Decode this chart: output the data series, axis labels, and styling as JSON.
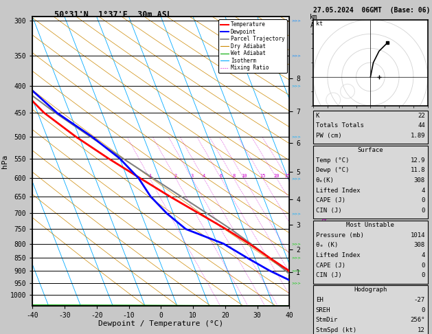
{
  "title_left": "50°31'N  1°37'E  30m ASL",
  "title_right": "27.05.2024  06GMT  (Base: 06)",
  "xlabel": "Dewpoint / Temperature (°C)",
  "ylabel_left": "hPa",
  "bg_color": "#c8c8c8",
  "plot_bg": "#ffffff",
  "pressure_ticks": [
    300,
    350,
    400,
    450,
    500,
    550,
    600,
    650,
    700,
    750,
    800,
    850,
    900,
    950,
    1000
  ],
  "isotherm_color": "#00aaff",
  "dry_adiabat_color": "#cc8800",
  "wet_adiabat_color": "#00aa00",
  "mixing_ratio_color": "#cc00cc",
  "mixing_ratio_values": [
    1,
    2,
    3,
    4,
    6,
    8,
    10,
    15,
    20,
    25
  ],
  "temperature_profile_temp": [
    12.9,
    11.5,
    9.0,
    4.5,
    0.0,
    -5.5,
    -12.0,
    -19.0,
    -26.0,
    -33.5,
    -41.0,
    -48.0,
    -53.0,
    -58.0,
    -58.0
  ],
  "temperature_profile_pres": [
    1000,
    950,
    900,
    850,
    800,
    750,
    700,
    650,
    600,
    550,
    500,
    450,
    400,
    350,
    300
  ],
  "dewpoint_profile_temp": [
    11.8,
    9.5,
    3.0,
    -2.5,
    -8.0,
    -18.0,
    -22.0,
    -25.0,
    -26.5,
    -30.0,
    -36.0,
    -44.0,
    -50.0,
    -55.0,
    -58.0
  ],
  "dewpoint_profile_pres": [
    1000,
    950,
    900,
    850,
    800,
    750,
    700,
    650,
    600,
    550,
    500,
    450,
    400,
    350,
    300
  ],
  "parcel_temp": [
    12.9,
    10.8,
    8.0,
    4.5,
    0.5,
    -4.0,
    -9.5,
    -15.5,
    -22.0,
    -29.0,
    -36.5,
    -44.5,
    -52.5,
    -61.0,
    -69.5
  ],
  "parcel_pres": [
    1000,
    950,
    900,
    850,
    800,
    750,
    700,
    650,
    600,
    550,
    500,
    450,
    400,
    350,
    300
  ],
  "temp_color": "#ff0000",
  "dewpoint_color": "#0000ff",
  "parcel_color": "#808080",
  "surface_temp": 12.9,
  "surface_dewp": 11.8,
  "surface_theta_e": 308,
  "surface_lifted_index": 4,
  "surface_cape": 0,
  "surface_cin": 0,
  "mu_pressure": 1014,
  "mu_theta_e": 308,
  "mu_lifted_index": 4,
  "mu_cape": 0,
  "mu_cin": 0,
  "K_index": 22,
  "totals_totals": 44,
  "PW_cm": 1.89,
  "EH": -27,
  "SREH": 0,
  "StmDir": 256,
  "StmSpd": 12,
  "km_ticks": [
    1,
    2,
    3,
    4,
    5,
    6,
    7,
    8
  ],
  "km_pressures": [
    907,
    820,
    737,
    658,
    583,
    513,
    447,
    387
  ],
  "mix_ratio_labels": [
    "1",
    "2",
    "3",
    "4",
    "6",
    "8",
    "10",
    "15",
    "20",
    "25"
  ],
  "font_mono": "monospace",
  "hodo_u": [
    0,
    1,
    3,
    5,
    6
  ],
  "hodo_v": [
    0,
    5,
    9,
    11,
    12
  ],
  "legend_items": [
    [
      "Temperature",
      "#ff0000",
      "-",
      1.5
    ],
    [
      "Dewpoint",
      "#0000ff",
      "-",
      1.5
    ],
    [
      "Parcel Trajectory",
      "#808080",
      "-",
      1.2
    ],
    [
      "Dry Adiabat",
      "#cc8800",
      "-",
      0.8
    ],
    [
      "Wet Adiabat",
      "#00aa00",
      "-",
      0.8
    ],
    [
      "Isotherm",
      "#00aaff",
      "-",
      0.8
    ],
    [
      "Mixing Ratio",
      "#cc00cc",
      ":",
      0.8
    ]
  ]
}
